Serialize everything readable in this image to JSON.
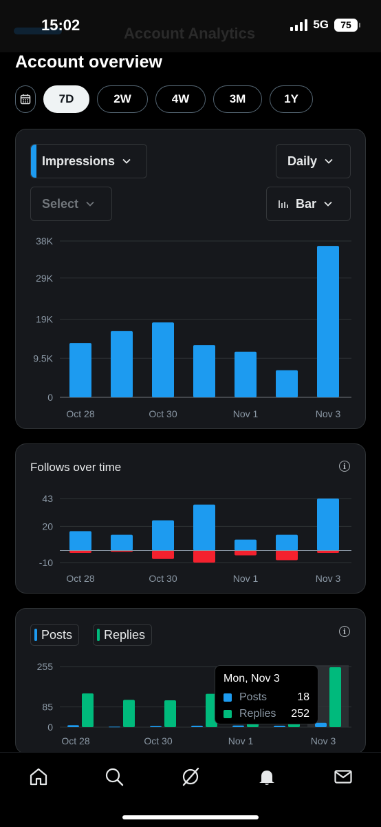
{
  "status_bar": {
    "time": "15:02",
    "network": "5G",
    "battery": "75",
    "behind_title": "Account Analytics"
  },
  "page": {
    "title": "Account overview"
  },
  "ranges": [
    {
      "label": "7D",
      "active": true
    },
    {
      "label": "2W",
      "active": false
    },
    {
      "label": "4W",
      "active": false
    },
    {
      "label": "3M",
      "active": false
    },
    {
      "label": "1Y",
      "active": false
    }
  ],
  "impressions_card": {
    "metric_select": "Impressions",
    "interval_select": "Daily",
    "compare_select": "Select",
    "chart_type_select": "Bar"
  },
  "follows_card": {
    "title": "Follows over time"
  },
  "posts_card": {
    "legend": [
      {
        "label": "Posts",
        "color": "#1d9bf0"
      },
      {
        "label": "Replies",
        "color": "#00ba7c"
      }
    ],
    "tooltip": {
      "title": "Mon, Nov 3",
      "rows": [
        {
          "label": "Posts",
          "value": "18"
        },
        {
          "label": "Replies",
          "value": "252"
        }
      ]
    }
  },
  "colors": {
    "blue": "#1d9bf0",
    "green": "#00ba7c",
    "red": "#f4212e"
  },
  "nav": [
    "home-icon",
    "search-icon",
    "grok-icon",
    "notifications-icon",
    "messages-icon"
  ],
  "chart_data": [
    {
      "type": "bar",
      "title": "",
      "categories": [
        "Oct 28",
        "Oct 29",
        "Oct 30",
        "Oct 31",
        "Nov 1",
        "Nov 2",
        "Nov 3"
      ],
      "xtick_labels": [
        "Oct 28",
        "Oct 30",
        "Nov 1",
        "Nov 3"
      ],
      "values": [
        13200,
        16100,
        18200,
        12700,
        11100,
        6600,
        36800
      ],
      "yticks": [
        0,
        9500,
        19000,
        29000,
        38000
      ],
      "ytick_labels": [
        "0",
        "9.5K",
        "19K",
        "29K",
        "38K"
      ],
      "ylim": [
        0,
        38000
      ],
      "grid": true
    },
    {
      "type": "bar",
      "title": "Follows over time",
      "categories": [
        "Oct 28",
        "Oct 29",
        "Oct 30",
        "Oct 31",
        "Nov 1",
        "Nov 2",
        "Nov 3"
      ],
      "xtick_labels": [
        "Oct 28",
        "Oct 30",
        "Nov 1",
        "Nov 3"
      ],
      "series": [
        {
          "values": [
            16,
            13,
            25,
            38,
            9,
            13,
            43
          ]
        },
        {
          "values": [
            -2,
            -1,
            -7,
            -10,
            -4,
            -8,
            -2
          ]
        }
      ],
      "yticks": [
        -10,
        20,
        43
      ],
      "ytick_labels": [
        "-10",
        "20",
        "43"
      ],
      "ylim": [
        -10,
        43
      ],
      "grid": true
    },
    {
      "type": "bar",
      "title": "",
      "categories": [
        "Oct 28",
        "Oct 29",
        "Oct 30",
        "Oct 31",
        "Nov 1",
        "Nov 2",
        "Nov 3"
      ],
      "xtick_labels": [
        "Oct 28",
        "Oct 30",
        "Nov 1",
        "Nov 3"
      ],
      "series": [
        {
          "name": "Posts",
          "values": [
            8,
            2,
            5,
            6,
            7,
            6,
            18
          ]
        },
        {
          "name": "Replies",
          "values": [
            142,
            115,
            113,
            140,
            150,
            158,
            252
          ]
        }
      ],
      "yticks": [
        0,
        85,
        255
      ],
      "ytick_labels": [
        "0",
        "85",
        "255"
      ],
      "ylim": [
        0,
        255
      ],
      "highlighted": "Nov 3"
    }
  ]
}
